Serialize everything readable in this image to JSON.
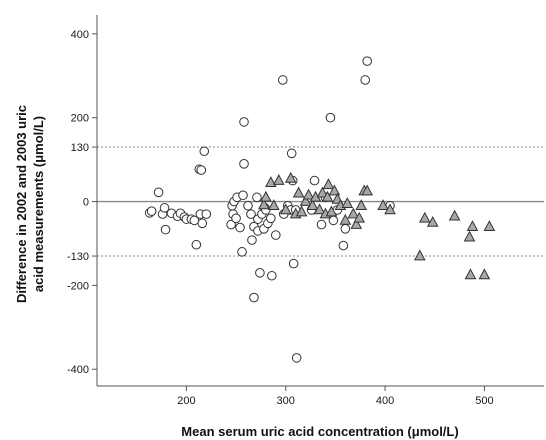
{
  "chart_data": {
    "type": "scatter",
    "title": "",
    "xlabel": "Mean serum uric acid concentration (μmol/L)",
    "ylabel_lines": [
      "Difference in 2002 and 2003 uric",
      "acid measurements (μmol/L)"
    ],
    "xlim": [
      110,
      560
    ],
    "ylim": [
      -440,
      445
    ],
    "x_ticks": [
      200,
      300,
      400,
      500
    ],
    "y_ticks": [
      -400,
      -200,
      -130,
      0,
      130,
      200,
      400
    ],
    "reference_lines": [
      {
        "y": 0,
        "style": "solid"
      },
      {
        "y": 130,
        "style": "dotted"
      },
      {
        "y": -130,
        "style": "dotted"
      }
    ],
    "grid": false,
    "legend": "none",
    "colors": {
      "marker_stroke": "#333333",
      "triangle_fill": "#a8a8a8",
      "circle_fill": "#ffffff",
      "axis": "#555555",
      "reference": "#8a8a8a"
    },
    "series": [
      {
        "marker": "circle",
        "points": [
          [
            163,
            -27
          ],
          [
            165,
            -23
          ],
          [
            172,
            22
          ],
          [
            176,
            -30
          ],
          [
            178,
            -15
          ],
          [
            179,
            -67
          ],
          [
            185,
            -28
          ],
          [
            191,
            -35
          ],
          [
            194,
            -28
          ],
          [
            198,
            -37
          ],
          [
            200,
            -42
          ],
          [
            205,
            -42
          ],
          [
            208,
            -45
          ],
          [
            210,
            -103
          ],
          [
            213,
            77
          ],
          [
            214,
            -30
          ],
          [
            215,
            75
          ],
          [
            216,
            -52
          ],
          [
            218,
            120
          ],
          [
            220,
            -30
          ],
          [
            245,
            -55
          ],
          [
            246,
            -10
          ],
          [
            247,
            -30
          ],
          [
            248,
            0
          ],
          [
            250,
            -40
          ],
          [
            251,
            10
          ],
          [
            254,
            -62
          ],
          [
            256,
            -120
          ],
          [
            257,
            15
          ],
          [
            258,
            90
          ],
          [
            258,
            190
          ],
          [
            262,
            -10
          ],
          [
            265,
            -30
          ],
          [
            266,
            -92
          ],
          [
            268,
            -60
          ],
          [
            268,
            -229
          ],
          [
            271,
            10
          ],
          [
            272,
            -70
          ],
          [
            272,
            -42
          ],
          [
            274,
            -170
          ],
          [
            276,
            -30
          ],
          [
            278,
            -65
          ],
          [
            279,
            -15
          ],
          [
            280,
            -20
          ],
          [
            282,
            -52
          ],
          [
            285,
            -40
          ],
          [
            286,
            -177
          ],
          [
            290,
            -80
          ],
          [
            297,
            290
          ],
          [
            298,
            -30
          ],
          [
            302,
            -10
          ],
          [
            305,
            -20
          ],
          [
            306,
            115
          ],
          [
            307,
            50
          ],
          [
            308,
            -148
          ],
          [
            310,
            -20
          ],
          [
            311,
            -373
          ],
          [
            326,
            -20
          ],
          [
            329,
            50
          ],
          [
            336,
            -55
          ],
          [
            340,
            10
          ],
          [
            345,
            200
          ],
          [
            348,
            -45
          ],
          [
            352,
            -20
          ],
          [
            358,
            -105
          ],
          [
            360,
            -65
          ],
          [
            380,
            290
          ],
          [
            382,
            335
          ],
          [
            405,
            -10
          ]
        ]
      },
      {
        "marker": "triangle",
        "points": [
          [
            278,
            -8
          ],
          [
            280,
            10
          ],
          [
            285,
            45
          ],
          [
            288,
            -10
          ],
          [
            293,
            50
          ],
          [
            300,
            -20
          ],
          [
            305,
            55
          ],
          [
            310,
            -30
          ],
          [
            313,
            20
          ],
          [
            316,
            -25
          ],
          [
            320,
            0
          ],
          [
            323,
            15
          ],
          [
            327,
            -10
          ],
          [
            330,
            10
          ],
          [
            334,
            -20
          ],
          [
            337,
            20
          ],
          [
            340,
            -30
          ],
          [
            342,
            10
          ],
          [
            343,
            40
          ],
          [
            346,
            -25
          ],
          [
            349,
            25
          ],
          [
            352,
            5
          ],
          [
            355,
            -10
          ],
          [
            360,
            -45
          ],
          [
            362,
            -5
          ],
          [
            368,
            -30
          ],
          [
            371,
            -55
          ],
          [
            374,
            -40
          ],
          [
            376,
            -10
          ],
          [
            379,
            25
          ],
          [
            382,
            25
          ],
          [
            398,
            -10
          ],
          [
            405,
            -20
          ],
          [
            435,
            -130
          ],
          [
            440,
            -40
          ],
          [
            448,
            -50
          ],
          [
            470,
            -35
          ],
          [
            485,
            -85
          ],
          [
            486,
            -175
          ],
          [
            488,
            -60
          ],
          [
            500,
            -175
          ],
          [
            505,
            -60
          ]
        ]
      }
    ]
  }
}
